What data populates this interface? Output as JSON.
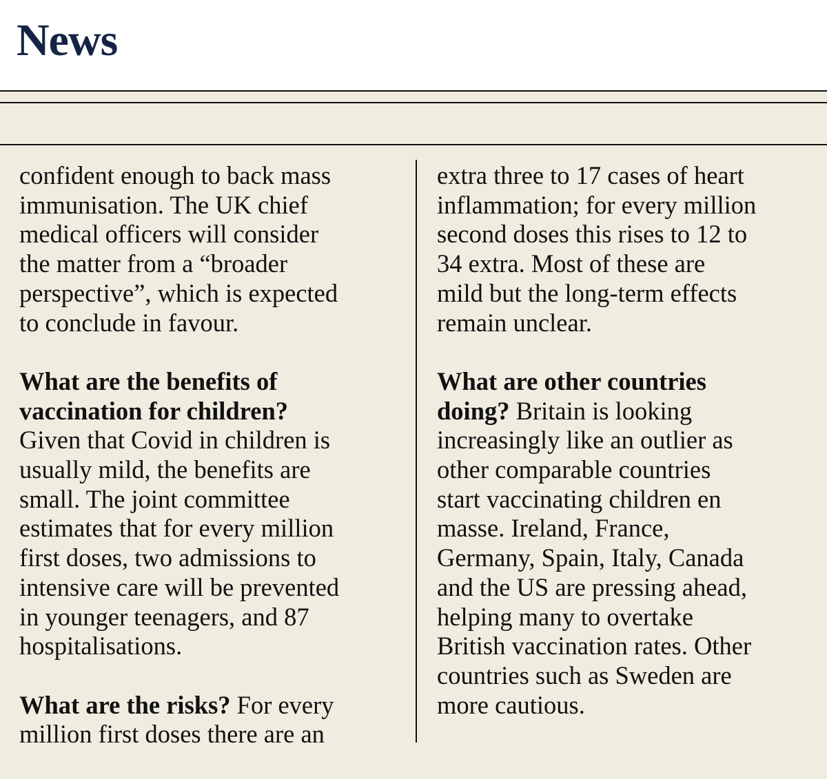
{
  "header": {
    "section_title": "News"
  },
  "colors": {
    "background": "#f0ece0",
    "masthead": "#ffffff",
    "title": "#152445",
    "text": "#111111"
  },
  "article": {
    "left_column": {
      "intro_lines": [
        "confident enough to back mass",
        "immunisation. The UK chief",
        "medical officers will consider",
        "the matter from a “broader",
        "perspective”, which is expected",
        "to conclude in favour."
      ],
      "benefits": {
        "heading_lines": [
          "What are the benefits of",
          "vaccination for children?"
        ],
        "body_lines": [
          "Given that Covid in children is",
          "usually mild, the benefits are",
          "small. The joint committee",
          "estimates that for every million",
          "first doses, two admissions to",
          "intensive care will be prevented",
          "in younger teenagers, and 87",
          "hospitalisations."
        ]
      },
      "risks": {
        "heading": "What are the risks?",
        "first_line_rest": " For every",
        "body_lines": [
          "million first doses there are an"
        ]
      }
    },
    "right_column": {
      "risks_continued_lines": [
        "extra three to 17 cases of heart",
        "inflammation; for every million",
        "second doses this rises to 12 to",
        "34 extra. Most of these are",
        "mild but the long-term effects",
        "remain unclear."
      ],
      "other_countries": {
        "heading_line1": "What are other countries",
        "heading_line2": "doing?",
        "line2_rest": " Britain is looking",
        "body_lines": [
          "increasingly like an outlier as",
          "other comparable countries",
          "start vaccinating children en",
          "masse. Ireland, France,",
          "Germany, Spain, Italy, Canada",
          "and the US are pressing ahead,",
          "helping many to overtake",
          "British vaccination rates. Other",
          "countries such as Sweden are",
          "more cautious."
        ]
      }
    }
  }
}
